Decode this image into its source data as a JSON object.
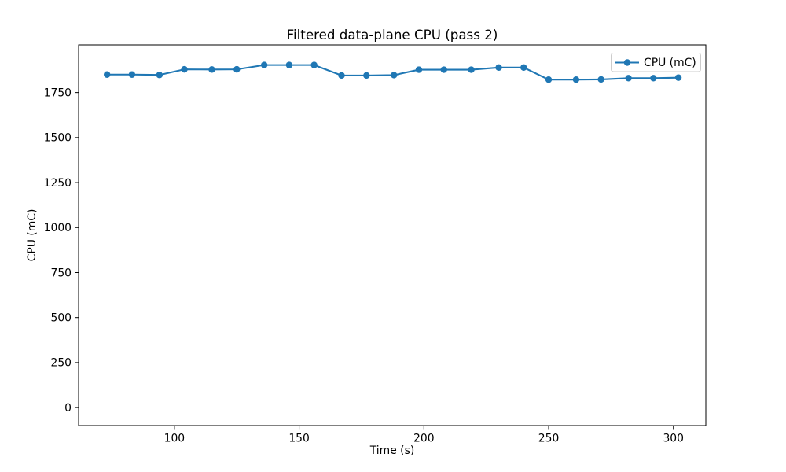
{
  "chart_data": {
    "type": "line",
    "title": "Filtered data-plane CPU (pass 2)",
    "xlabel": "Time (s)",
    "ylabel": "CPU (mC)",
    "grid": false,
    "legend": {
      "label": "CPU (mC)",
      "position": "upper right"
    },
    "colors": {
      "series": "#1f77b4",
      "legend_border": "#cccccc",
      "axes": "#000000",
      "background": "#ffffff"
    },
    "xticks": [
      100,
      150,
      200,
      250,
      300
    ],
    "yticks": [
      0,
      250,
      500,
      750,
      1000,
      1250,
      1500,
      1750
    ],
    "xlim": [
      61.6,
      313.0
    ],
    "ylim": [
      -100,
      2015
    ],
    "series": [
      {
        "name": "CPU (mC)",
        "marker": "circle",
        "x": [
          73,
          83,
          94,
          104,
          115,
          125,
          136,
          146,
          156,
          167,
          177,
          188,
          198,
          208,
          219,
          230,
          240,
          250,
          261,
          271,
          282,
          292,
          302
        ],
        "y": [
          1850,
          1850,
          1848,
          1879,
          1878,
          1879,
          1903,
          1903,
          1903,
          1845,
          1845,
          1847,
          1877,
          1877,
          1877,
          1889,
          1889,
          1822,
          1822,
          1823,
          1830,
          1830,
          1833
        ]
      }
    ]
  }
}
